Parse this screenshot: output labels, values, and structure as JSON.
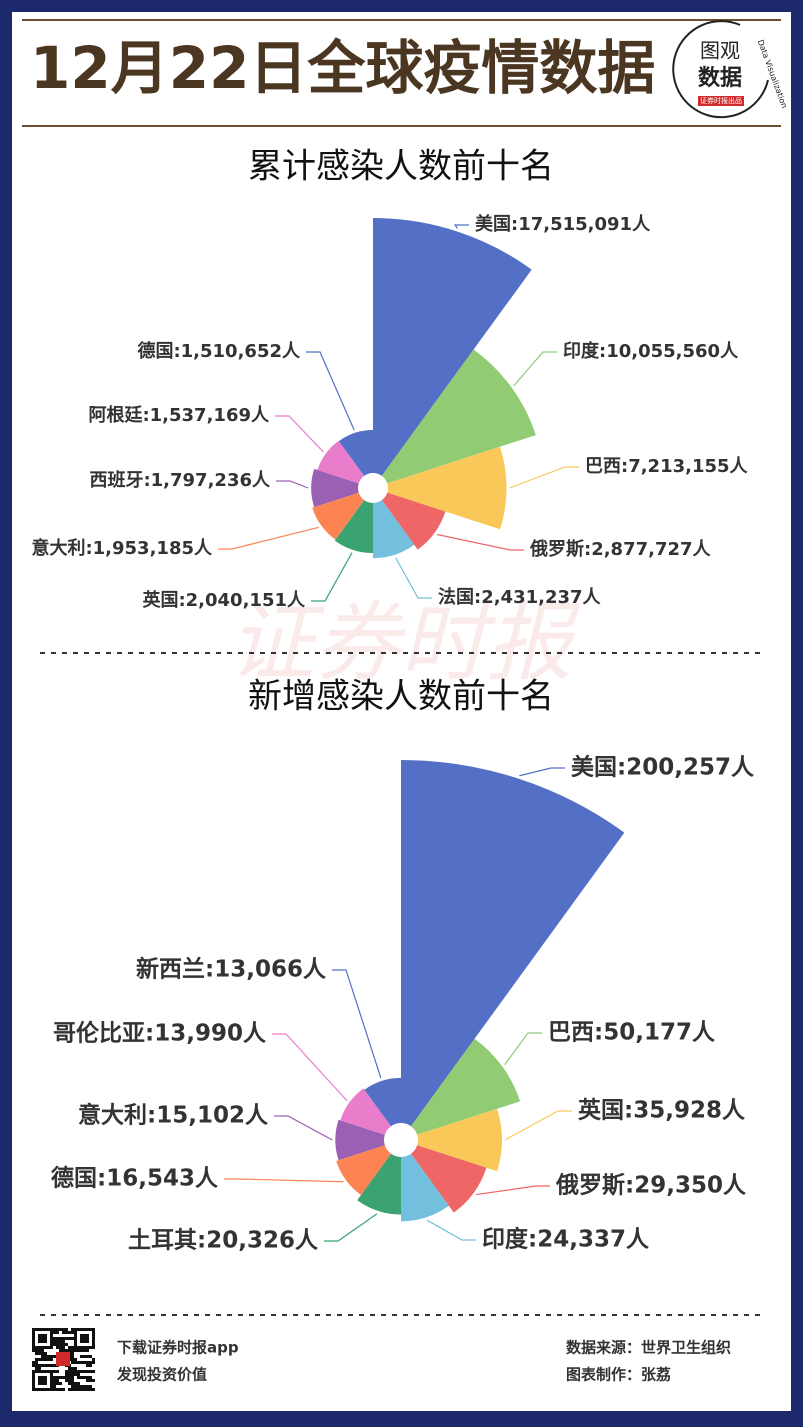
{
  "header": {
    "title": "12月22日全球疫情数据",
    "logo": {
      "line1": "图观",
      "line2": "数据",
      "tagline": "Data Visualization",
      "badge": "证券时报出品"
    }
  },
  "watermark": "证券时报",
  "chart_data": [
    {
      "type": "rose",
      "title": "累计感染人数前十名",
      "categories": [
        "美国",
        "印度",
        "巴西",
        "俄罗斯",
        "法国",
        "英国",
        "意大利",
        "西班牙",
        "阿根廷",
        "德国"
      ],
      "values": [
        17515091,
        10055560,
        7213155,
        2877727,
        2431237,
        2040151,
        1953185,
        1797236,
        1537169,
        1510652
      ],
      "value_labels": [
        "美国:17,515,091人",
        "印度:10,055,560人",
        "巴西:7,213,155人",
        "俄罗斯:2,877,727人",
        "法国:2,431,237人",
        "英国:2,040,151人",
        "意大利:1,953,185人",
        "西班牙:1,797,236人",
        "阿根廷:1,537,169人",
        "德国:1,510,652人"
      ],
      "colors": [
        "#5470c6",
        "#91cc75",
        "#fac858",
        "#ee6666",
        "#73c0de",
        "#3ba272",
        "#fc8452",
        "#9a60b4",
        "#ea7ccc",
        "#5470c6"
      ]
    },
    {
      "type": "rose",
      "title": "新增感染人数前十名",
      "categories": [
        "美国",
        "巴西",
        "英国",
        "俄罗斯",
        "印度",
        "土耳其",
        "德国",
        "意大利",
        "哥伦比亚",
        "新西兰"
      ],
      "values": [
        200257,
        50177,
        35928,
        29350,
        24337,
        20326,
        16543,
        15102,
        13990,
        13066
      ],
      "value_labels": [
        "美国:200,257人",
        "巴西:50,177人",
        "英国:35,928人",
        "俄罗斯:29,350人",
        "印度:24,337人",
        "土耳其:20,326人",
        "德国:16,543人",
        "意大利:15,102人",
        "哥伦比亚:13,990人",
        "新西兰:13,066人"
      ],
      "colors": [
        "#5470c6",
        "#91cc75",
        "#fac858",
        "#ee6666",
        "#73c0de",
        "#3ba272",
        "#fc8452",
        "#9a60b4",
        "#ea7ccc",
        "#5470c6"
      ]
    }
  ],
  "footer": {
    "app": "下载证券时报app",
    "slogan": "发现投资价值",
    "source": "数据来源：世界卫生组织",
    "author": "图表制作：张荔"
  }
}
